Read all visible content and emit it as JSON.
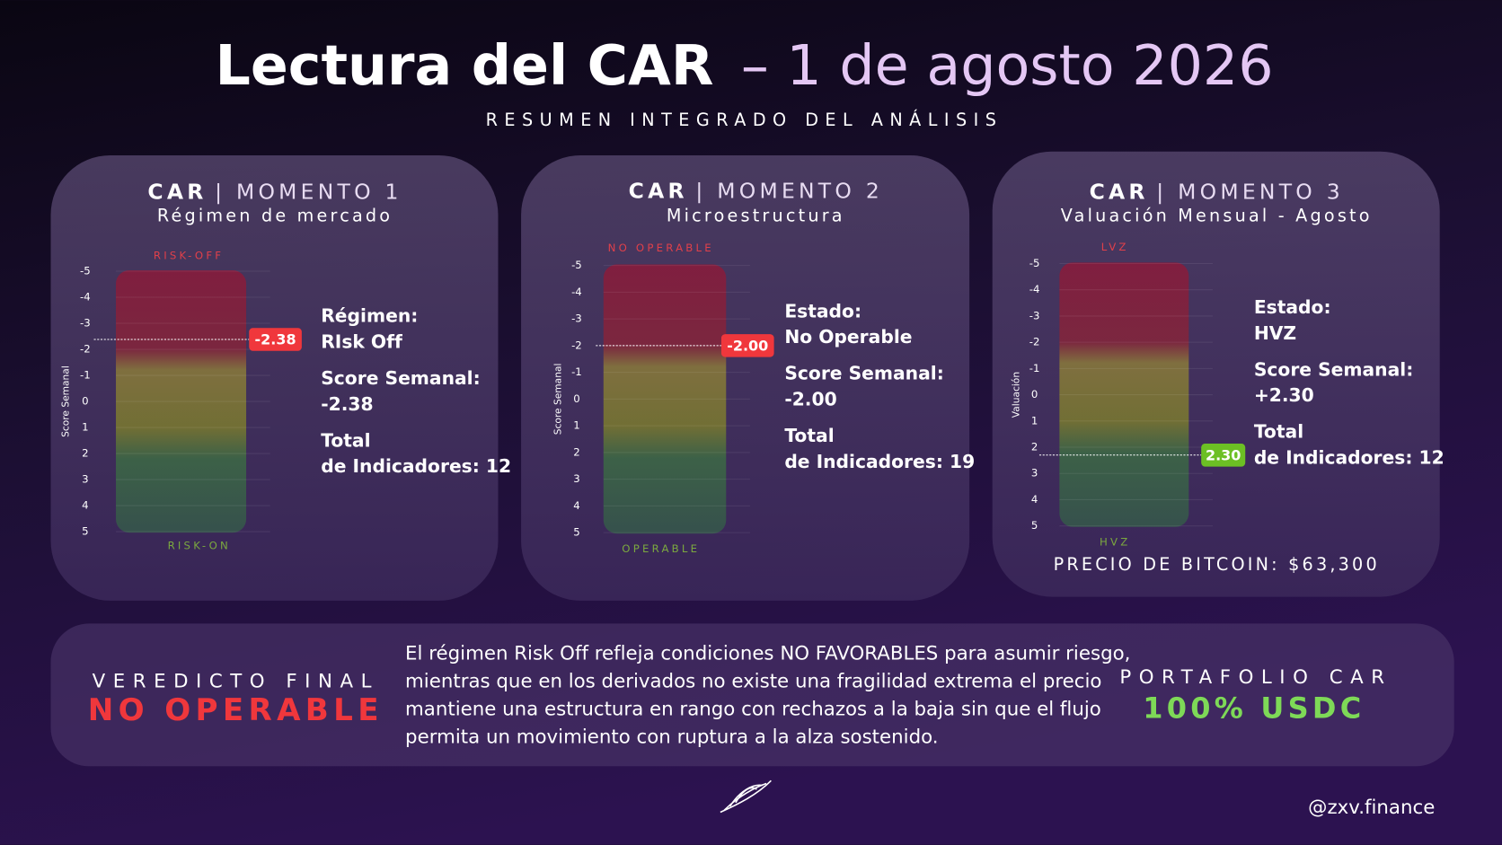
{
  "header": {
    "title_bold": "Lectura del CAR",
    "title_light": "– 1 de agosto 2026",
    "subtitle": "RESUMEN INTEGRADO DEL ANÁLISIS"
  },
  "chart_data": [
    {
      "type": "gauge",
      "title_bold": "CAR",
      "title_light": "| MOMENTO 1",
      "subtitle": "Régimen de mercado",
      "y_label": "Score Semanal",
      "top_label": "RISK-OFF",
      "bottom_label": "RISK-ON",
      "ylim": [
        -5,
        5
      ],
      "y_inverted": true,
      "yticks": [
        -5,
        -4,
        -3,
        -2,
        -1,
        0,
        1,
        2,
        3,
        4,
        5
      ],
      "value": -2.38,
      "value_label": "-2.38",
      "marker_color": "#f0373c",
      "info": [
        "Régimen:",
        "RIsk Off",
        "Score Semanal:",
        "-2.38",
        "Total",
        "de Indicadores: 12"
      ]
    },
    {
      "type": "gauge",
      "title_bold": "CAR",
      "title_light": "| MOMENTO 2",
      "subtitle": "Microestructura",
      "y_label": "Score Semanal",
      "top_label": "NO OPERABLE",
      "bottom_label": "OPERABLE",
      "ylim": [
        -5,
        5
      ],
      "y_inverted": true,
      "yticks": [
        -5,
        -4,
        -3,
        -2,
        -1,
        0,
        1,
        2,
        3,
        4,
        5
      ],
      "value": -2,
      "value_label": "-2.00",
      "marker_color": "#f0373c",
      "info": [
        "Estado:",
        "No Operable",
        "Score Semanal:",
        "-2.00",
        "Total",
        "de Indicadores: 19"
      ]
    },
    {
      "type": "gauge",
      "title_bold": "CAR",
      "title_light": "| MOMENTO 3",
      "subtitle": "Valuación Mensual - Agosto",
      "y_label": "Valuación",
      "top_label": "LVZ",
      "bottom_label": "HVZ",
      "ylim": [
        -5,
        5
      ],
      "y_inverted": true,
      "yticks": [
        -5,
        -4,
        -3,
        -2,
        -1,
        0,
        1,
        2,
        3,
        4,
        5
      ],
      "value": 2.3,
      "value_label": "2.30",
      "marker_color": "#6cc024",
      "info": [
        "Estado:",
        "HVZ",
        "Score Semanal:",
        "+2.30",
        "Total",
        "de Indicadores: 12"
      ],
      "footnote": "PRECIO DE BITCOIN: $63,300"
    }
  ],
  "verdict": {
    "label": "VEREDICTO FINAL",
    "value": "NO OPERABLE",
    "text_lines": [
      "El régimen Risk Off refleja condiciones NO FAVORABLES para asumir riesgo,",
      "mientras que en los derivados no existe una fragilidad extrema el precio",
      "mantiene una estructura en rango con rechazos a la baja sin que el flujo",
      "permita un movimiento con ruptura a la alza sostenido."
    ]
  },
  "portfolio": {
    "label": "PORTAFOLIO CAR",
    "value": "100% USDC"
  },
  "footer": {
    "handle": "@zxv.finance"
  }
}
